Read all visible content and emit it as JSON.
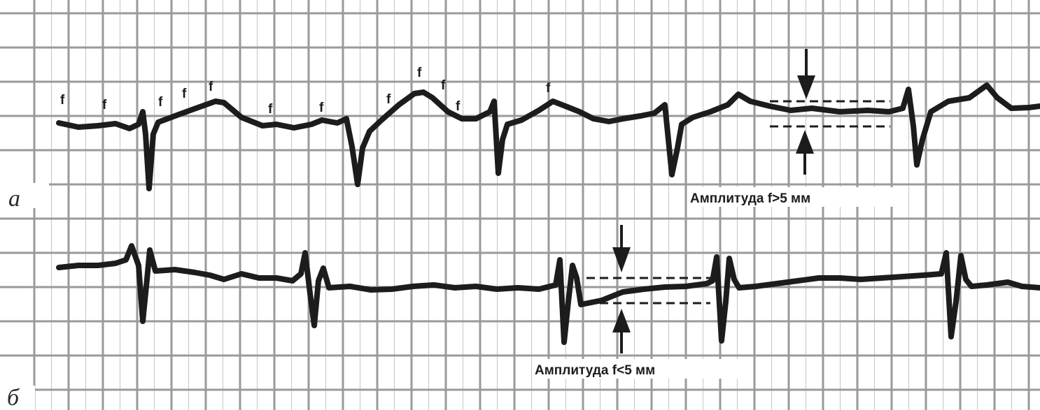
{
  "panels": [
    {
      "label": "а",
      "caption": "Амплитуда f>5 мм",
      "wave_marker": "f"
    },
    {
      "label": "б",
      "caption": "Амплитуда f<5 мм"
    }
  ]
}
